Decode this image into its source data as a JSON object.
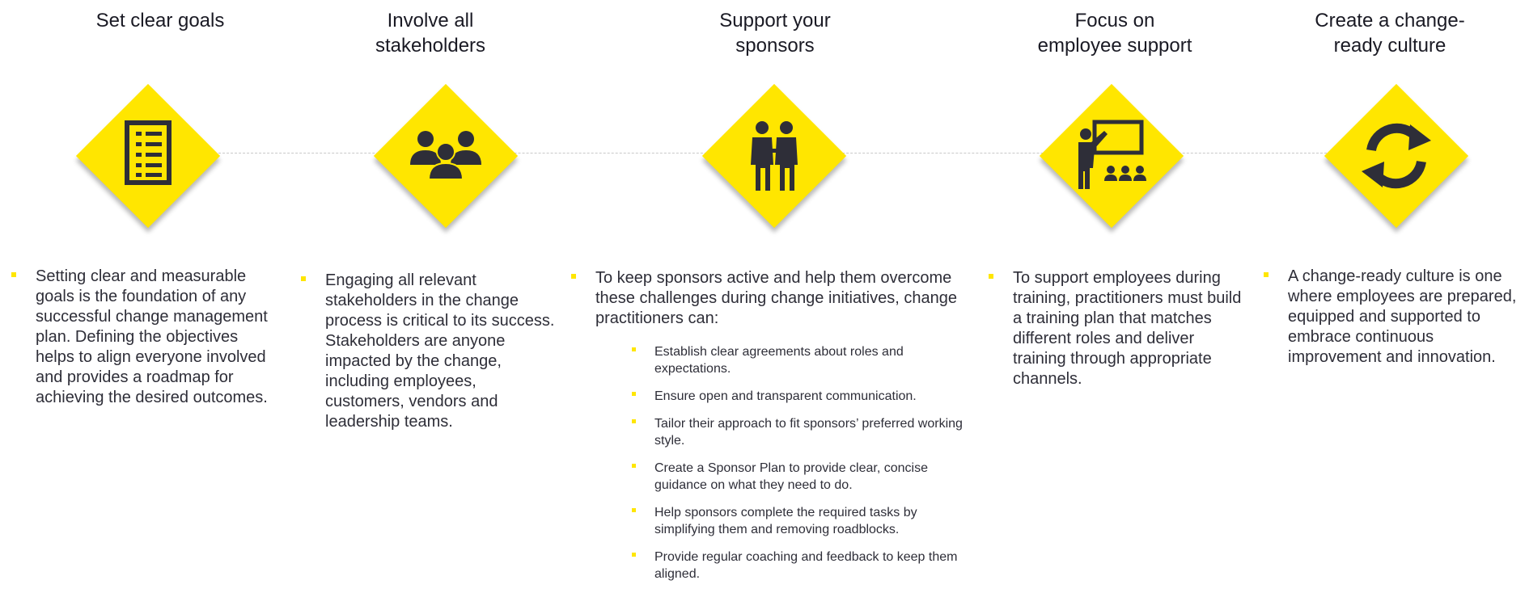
{
  "steps": [
    {
      "title": "Set clear goals",
      "icon": "checklist-icon",
      "text": "Setting clear and measurable goals is the foundation of any successful change management plan. Defining the objectives helps to align everyone involved and provides a roadmap for achieving the desired outcomes."
    },
    {
      "title": "Involve all\nstakeholders",
      "icon": "group-people-icon",
      "text": "Engaging all relevant stakeholders in the change process is critical to its success. Stakeholders are anyone impacted by the change, including employees, customers, vendors and leadership teams."
    },
    {
      "title": "Support your\nsponsors",
      "icon": "two-people-icon",
      "text": "To keep sponsors active and help them overcome these challenges during change initiatives, change practitioners can:",
      "sub_items": [
        "Establish clear agreements about roles and expectations.",
        "Ensure open and transparent communication.",
        "Tailor their approach to fit sponsors’ preferred working style.",
        "Create a Sponsor Plan to provide clear, concise guidance on what they need to do.",
        "Help sponsors complete the required tasks by simplifying them and removing roadblocks.",
        "Provide regular coaching and feedback to keep them aligned."
      ]
    },
    {
      "title": "Focus on\nemployee support",
      "icon": "presentation-training-icon",
      "text": "To support employees during training, practitioners must build a training plan that matches different roles and deliver training through appropriate channels."
    },
    {
      "title": "Create a change-\nready culture",
      "icon": "refresh-cycle-icon",
      "text": "A change-ready culture is one where employees are prepared, equipped and supported to embrace continuous improvement and innovation."
    }
  ],
  "colors": {
    "accent": "#ffe600",
    "icon": "#2e2e38",
    "text": "#2e2e38",
    "connector": "#c8c8c8"
  }
}
